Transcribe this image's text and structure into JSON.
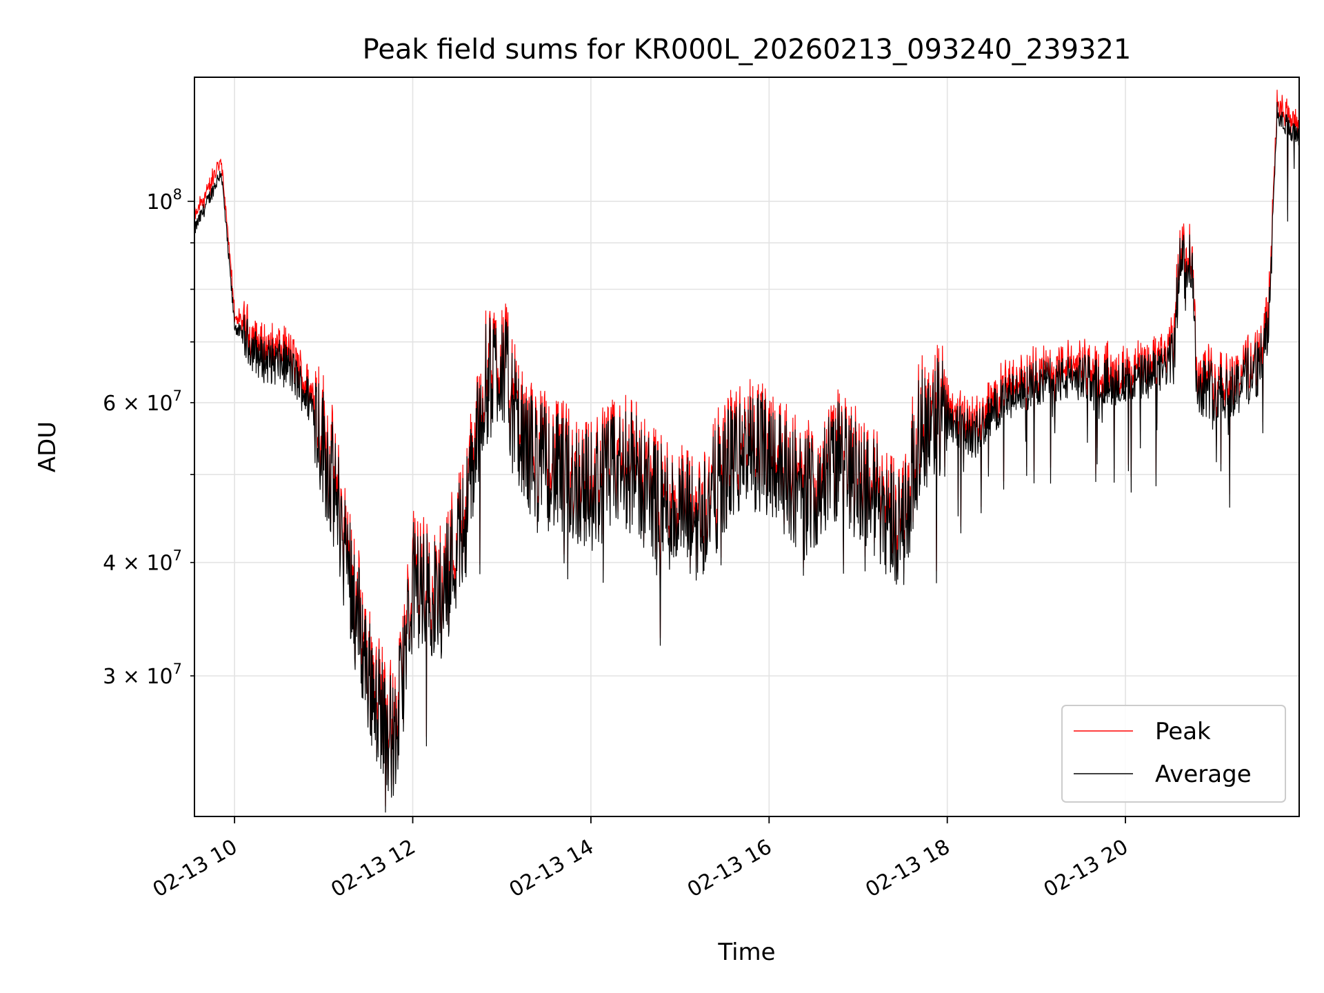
{
  "chart_data": {
    "type": "line",
    "title": "Peak field sums for KR000L_20260213_093240_239321",
    "xlabel": "Time",
    "ylabel": "ADU",
    "yscale": "log",
    "ylim": [
      21000000,
      137000000
    ],
    "xlim_hours": [
      9.55,
      21.95
    ],
    "x_ticks": [
      {
        "value": 10,
        "label": "02-13 10"
      },
      {
        "value": 12,
        "label": "02-13 12"
      },
      {
        "value": 14,
        "label": "02-13 14"
      },
      {
        "value": 16,
        "label": "02-13 16"
      },
      {
        "value": 18,
        "label": "02-13 18"
      },
      {
        "value": 20,
        "label": "02-13 20"
      }
    ],
    "y_major_ticks": [
      {
        "value": 100000000,
        "base": "10",
        "exp": "8"
      }
    ],
    "y_minor_ticks": [
      {
        "value": 30000000,
        "mant": "3",
        "base": "10",
        "exp": "7"
      },
      {
        "value": 40000000,
        "mant": "4",
        "base": "10",
        "exp": "7"
      },
      {
        "value": 60000000,
        "mant": "6",
        "base": "10",
        "exp": "7"
      }
    ],
    "y_minor_unlabeled": [
      50000000,
      70000000,
      80000000,
      90000000
    ],
    "grid": true,
    "legend_position": "lower-right",
    "series": [
      {
        "name": "Peak",
        "color": "#ff0000",
        "peak_offset": 0.03,
        "envelope_hours": [
          9.55,
          9.7,
          9.85,
          10.0,
          10.3,
          10.6,
          10.9,
          11.2,
          11.5,
          11.8,
          12.0,
          12.3,
          12.6,
          12.8,
          13.0,
          13.2,
          13.6,
          14.0,
          14.4,
          14.8,
          15.2,
          15.6,
          16.0,
          16.4,
          16.8,
          17.2,
          17.5,
          17.7,
          18.0,
          18.3,
          18.6,
          19.0,
          19.5,
          20.0,
          20.4,
          20.55,
          20.6,
          20.7,
          20.75,
          20.8,
          21.0,
          21.2,
          21.5,
          21.6,
          21.7,
          21.95
        ],
        "envelope_values": [
          93000000,
          100000000,
          108000000,
          73000000,
          67000000,
          66000000,
          59000000,
          44000000,
          30000000,
          25000000,
          38000000,
          36000000,
          45000000,
          62000000,
          67000000,
          54000000,
          50000000,
          48000000,
          51000000,
          46000000,
          44000000,
          52000000,
          53000000,
          47000000,
          52000000,
          47000000,
          43000000,
          56000000,
          58000000,
          55000000,
          60000000,
          63000000,
          64000000,
          63000000,
          65000000,
          68000000,
          85000000,
          87000000,
          85000000,
          63000000,
          62000000,
          62000000,
          66000000,
          71000000,
          125000000,
          117000000
        ]
      },
      {
        "name": "Average",
        "color": "#000000"
      }
    ]
  }
}
